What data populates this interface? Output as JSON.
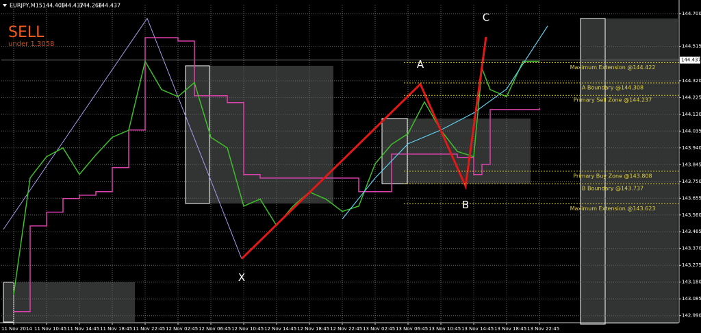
{
  "chart_data": {
    "type": "line",
    "symbol": "EURJPY,M15",
    "ohlc": [
      144.403,
      144.437,
      144.264,
      144.437
    ],
    "signal": "SELL",
    "signal_note": "under 1.3058",
    "bid": 144.437,
    "grid": true,
    "xlim": [
      -6,
      324
    ],
    "ylim": [
      142.95,
      144.75
    ],
    "xticks": [
      {
        "value": 0,
        "label": "11 Nov 2014"
      },
      {
        "value": 16,
        "label": "11 Nov 10:45"
      },
      {
        "value": 32,
        "label": "11 Nov 14:45"
      },
      {
        "value": 48,
        "label": "11 Nov 18:45"
      },
      {
        "value": 64,
        "label": "11 Nov 22:45"
      },
      {
        "value": 80,
        "label": "12 Nov 02:45"
      },
      {
        "value": 96,
        "label": "12 Nov 06:45"
      },
      {
        "value": 112,
        "label": "12 Nov 10:45"
      },
      {
        "value": 128,
        "label": "12 Nov 14:45"
      },
      {
        "value": 144,
        "label": "12 Nov 18:45"
      },
      {
        "value": 160,
        "label": "12 Nov 22:45"
      },
      {
        "value": 176,
        "label": "13 Nov 02:45"
      },
      {
        "value": 192,
        "label": "13 Nov 06:45"
      },
      {
        "value": 208,
        "label": "13 Nov 10:45"
      },
      {
        "value": 224,
        "label": "13 Nov 14:45"
      },
      {
        "value": 240,
        "label": "13 Nov 18:45"
      },
      {
        "value": 256,
        "label": "13 Nov 22:45"
      }
    ],
    "yticks": [
      {
        "value": 144.7,
        "label": "144.700"
      },
      144.515,
      {
        "value": 144.32,
        "label": "144.320"
      },
      144.225,
      {
        "value": 144.13,
        "label": "144.130"
      },
      144.035,
      {
        "value": 143.94,
        "label": "143.940"
      },
      143.845,
      {
        "value": 143.75,
        "label": "143.750"
      },
      143.655,
      {
        "value": 143.56,
        "label": "143.560"
      },
      143.465,
      {
        "value": 143.37,
        "label": "143.370"
      },
      143.275,
      {
        "value": 143.18,
        "label": "143.180"
      },
      143.085,
      {
        "value": 142.99,
        "label": "142.990"
      }
    ],
    "price": {
      "color": "#3fbf2a",
      "x": [
        0,
        8,
        16,
        24,
        32,
        40,
        48,
        56,
        64,
        72,
        80,
        88,
        96,
        104,
        112,
        120,
        128,
        136,
        144,
        152,
        160,
        168,
        176,
        184,
        192,
        200,
        208,
        216,
        224,
        228,
        232,
        240,
        248,
        256
      ],
      "values": [
        143.11,
        143.77,
        143.89,
        143.94,
        143.79,
        143.9,
        144.0,
        144.04,
        144.43,
        144.27,
        144.23,
        144.31,
        144.0,
        143.94,
        143.61,
        143.65,
        143.5,
        143.61,
        143.69,
        143.65,
        143.58,
        143.61,
        143.85,
        143.96,
        144.02,
        144.2,
        144.04,
        143.92,
        143.89,
        144.39,
        144.27,
        144.23,
        144.43,
        144.43
      ]
    },
    "trail": {
      "color": "#e040b0",
      "x": [
        0,
        8,
        16,
        24,
        32,
        40,
        48,
        56,
        64,
        72,
        80,
        88,
        96,
        104,
        112,
        120,
        136,
        152,
        168,
        176,
        184,
        192,
        200,
        216,
        224,
        228,
        232,
        256
      ],
      "values": [
        143.013,
        143.498,
        143.576,
        143.653,
        143.672,
        143.692,
        143.828,
        144.041,
        144.564,
        144.564,
        144.545,
        144.235,
        144.235,
        144.196,
        143.789,
        143.769,
        143.769,
        143.769,
        143.692,
        143.692,
        143.905,
        143.905,
        143.905,
        143.886,
        143.789,
        143.847,
        144.157,
        144.165
      ]
    },
    "average": {
      "color": "#5fd0f0",
      "x": [
        160,
        176,
        192,
        208,
        224,
        240,
        260
      ],
      "values": [
        143.537,
        143.769,
        143.963,
        144.041,
        144.138,
        144.273,
        144.63
      ]
    },
    "swing": {
      "color": "#a89cf0",
      "x": [
        -5,
        65,
        111
      ],
      "values": [
        143.479,
        144.673,
        143.312
      ]
    },
    "pattern": {
      "color": "#e01818",
      "points": [
        {
          "label": "X",
          "x": 111,
          "value": 143.312
        },
        {
          "label": "A",
          "x": 198,
          "value": 144.301
        },
        {
          "label": "B",
          "x": 220,
          "value": 143.723
        },
        {
          "label": "C",
          "x": 230,
          "value": 144.568
        }
      ]
    },
    "levels": [
      {
        "label": "Maximum Extension @144.422",
        "value": 144.422
      },
      {
        "label": "A Boundary @144.308",
        "value": 144.308
      },
      {
        "label": "Primary Sell Zone @144.237",
        "value": 144.237
      },
      {
        "label": "Primary Buy Zone @143.808",
        "value": 143.808
      },
      {
        "label": "B Boundary @143.737",
        "value": 143.737
      },
      {
        "label": "Maximum Extension @143.623",
        "value": 143.623
      }
    ]
  }
}
